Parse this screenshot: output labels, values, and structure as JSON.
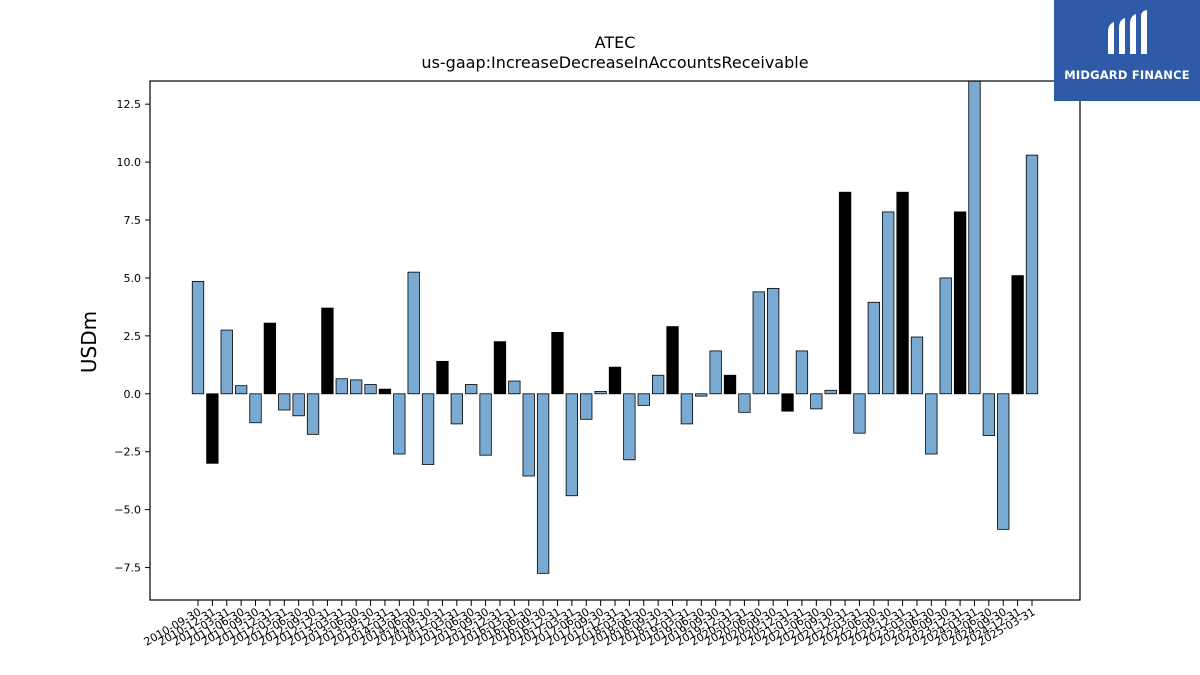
{
  "chart_data": {
    "type": "bar",
    "title": "ATEC",
    "subtitle": "us-gaap:IncreaseDecreaseInAccountsReceivable",
    "ylabel": "USDm",
    "xlabel": "",
    "ylim": [
      -8.9,
      13.5
    ],
    "yticks": [
      -7.5,
      -5.0,
      -2.5,
      0.0,
      2.5,
      5.0,
      7.5,
      10.0,
      12.5
    ],
    "ytick_labels": [
      "−7.5",
      "−5.0",
      "−2.5",
      "0.0",
      "2.5",
      "5.0",
      "7.5",
      "10.0",
      "12.5"
    ],
    "grid": false,
    "colors": {
      "quarter": "#7aaad2",
      "fiscal_year": "#000000",
      "edge": "#000000"
    },
    "categories": [
      "2010-09-30",
      "2010-12-31",
      "2011-03-31",
      "2011-06-30",
      "2011-09-30",
      "2011-12-31",
      "2012-03-31",
      "2012-06-30",
      "2012-09-30",
      "2012-12-31",
      "2013-03-31",
      "2013-06-30",
      "2013-09-30",
      "2013-12-31",
      "2014-03-31",
      "2014-06-30",
      "2014-09-30",
      "2014-12-31",
      "2015-03-31",
      "2015-06-30",
      "2015-09-30",
      "2015-12-31",
      "2016-03-31",
      "2016-06-30",
      "2016-09-30",
      "2016-12-31",
      "2017-03-31",
      "2017-06-30",
      "2017-09-30",
      "2017-12-31",
      "2018-03-31",
      "2018-06-30",
      "2018-09-30",
      "2018-12-31",
      "2019-03-31",
      "2019-06-30",
      "2019-09-30",
      "2019-12-31",
      "2020-03-31",
      "2020-06-30",
      "2020-09-30",
      "2020-12-31",
      "2021-03-31",
      "2021-06-30",
      "2021-09-30",
      "2021-12-31",
      "2022-03-31",
      "2022-06-30",
      "2022-09-30",
      "2022-12-31",
      "2023-03-31",
      "2023-06-30",
      "2023-09-30",
      "2023-12-31",
      "2024-03-31",
      "2024-06-30",
      "2024-09-30",
      "2024-12-31",
      "2025-03-31"
    ],
    "values": [
      4.85,
      -3.0,
      2.75,
      0.35,
      -1.25,
      3.05,
      -0.7,
      -0.95,
      -1.75,
      3.7,
      0.65,
      0.6,
      0.4,
      0.2,
      -2.6,
      5.25,
      -3.05,
      1.4,
      -1.3,
      0.4,
      -2.65,
      2.25,
      0.55,
      -3.55,
      -7.75,
      2.65,
      -4.4,
      -1.1,
      0.1,
      1.15,
      -2.85,
      -0.5,
      0.8,
      2.9,
      -1.3,
      -0.1,
      1.85,
      0.8,
      -0.8,
      4.4,
      4.55,
      -0.75,
      1.85,
      -0.65,
      0.15,
      8.7,
      -1.7,
      3.95,
      7.85,
      8.7,
      2.45,
      -2.6,
      5.0,
      7.85,
      13.5,
      -1.8,
      -5.85,
      5.1,
      10.3
    ],
    "is_fiscal_year": [
      false,
      true,
      false,
      false,
      false,
      true,
      false,
      false,
      false,
      true,
      false,
      false,
      false,
      true,
      false,
      false,
      false,
      true,
      false,
      false,
      false,
      true,
      false,
      false,
      false,
      true,
      false,
      false,
      false,
      true,
      false,
      false,
      false,
      true,
      false,
      false,
      false,
      true,
      false,
      false,
      false,
      true,
      false,
      false,
      false,
      true,
      false,
      false,
      false,
      true,
      false,
      false,
      false,
      true,
      false,
      false,
      false,
      true,
      false
    ]
  },
  "logo": {
    "text": "MIDGARD FINANCE",
    "color": "#2e5aa8"
  }
}
